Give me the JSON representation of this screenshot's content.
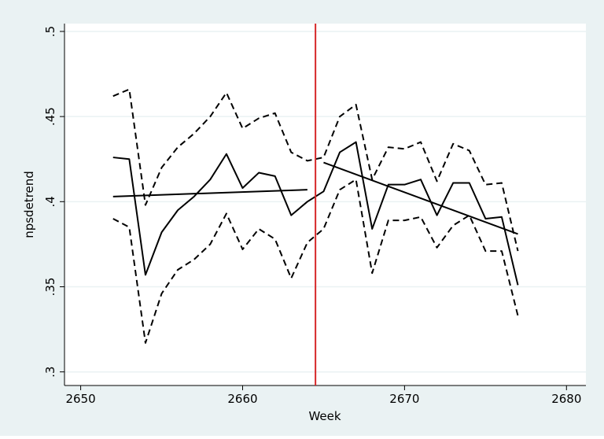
{
  "chart_data": {
    "type": "line",
    "x_label": "Week",
    "y_label": "npsdetrend",
    "xlim": [
      2649,
      2681.2
    ],
    "xticks": [
      2650,
      2660,
      2670,
      2680
    ],
    "ylim": [
      0.292,
      0.5046
    ],
    "yticks": [
      {
        "value": 0.3,
        "label": ".3"
      },
      {
        "value": 0.35,
        "label": ".35"
      },
      {
        "value": 0.4,
        "label": ".4"
      },
      {
        "value": 0.45,
        "label": ".45"
      },
      {
        "value": 0.5,
        "label": ".5"
      }
    ],
    "grid": true,
    "vline": 2664.5,
    "vline_color": "#d62728",
    "series": [
      {
        "color": "#000000",
        "dash": false,
        "x": [
          2652,
          2653,
          2654,
          2655,
          2656,
          2657,
          2658,
          2659,
          2660,
          2661,
          2662,
          2663,
          2664,
          2665,
          2666,
          2667,
          2668,
          2669,
          2670,
          2671,
          2672,
          2673,
          2674,
          2675,
          2676,
          2677
        ],
        "values": [
          0.426,
          0.425,
          0.357,
          0.382,
          0.395,
          0.403,
          0.413,
          0.428,
          0.408,
          0.417,
          0.415,
          0.392,
          0.4,
          0.406,
          0.429,
          0.435,
          0.384,
          0.41,
          0.41,
          0.413,
          0.392,
          0.411,
          0.411,
          0.39,
          0.391,
          0.351
        ]
      },
      {
        "color": "#000000",
        "dash": true,
        "x": [
          2652,
          2653,
          2654,
          2655,
          2656,
          2657,
          2658,
          2659,
          2660,
          2661,
          2662,
          2663,
          2664,
          2665,
          2666,
          2667,
          2668,
          2669,
          2670,
          2671,
          2672,
          2673,
          2674,
          2675,
          2676,
          2677
        ],
        "values": [
          0.462,
          0.466,
          0.398,
          0.42,
          0.432,
          0.44,
          0.45,
          0.464,
          0.443,
          0.449,
          0.452,
          0.429,
          0.424,
          0.426,
          0.45,
          0.457,
          0.413,
          0.432,
          0.431,
          0.435,
          0.412,
          0.434,
          0.43,
          0.41,
          0.411,
          0.371
        ]
      },
      {
        "color": "#000000",
        "dash": true,
        "x": [
          2652,
          2653,
          2654,
          2655,
          2656,
          2657,
          2658,
          2659,
          2660,
          2661,
          2662,
          2663,
          2664,
          2665,
          2666,
          2667,
          2668,
          2669,
          2670,
          2671,
          2672,
          2673,
          2674,
          2675,
          2676,
          2677
        ],
        "values": [
          0.39,
          0.385,
          0.317,
          0.346,
          0.36,
          0.366,
          0.375,
          0.393,
          0.372,
          0.384,
          0.378,
          0.355,
          0.376,
          0.384,
          0.407,
          0.413,
          0.358,
          0.389,
          0.389,
          0.391,
          0.373,
          0.386,
          0.392,
          0.371,
          0.371,
          0.333
        ]
      },
      {
        "color": "#000000",
        "dash": false,
        "x": [
          2652,
          2664
        ],
        "values": [
          0.403,
          0.407
        ]
      },
      {
        "color": "#000000",
        "dash": false,
        "x": [
          2665,
          2677
        ],
        "values": [
          0.423,
          0.381
        ]
      }
    ]
  }
}
